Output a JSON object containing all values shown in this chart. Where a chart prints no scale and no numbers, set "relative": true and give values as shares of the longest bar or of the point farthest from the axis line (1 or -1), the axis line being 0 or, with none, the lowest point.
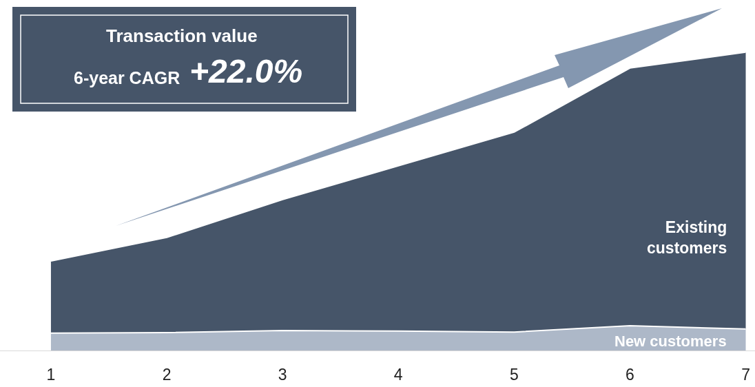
{
  "chart_data": {
    "type": "area",
    "stacked": true,
    "relative": true,
    "title": "Transaction value",
    "annotations": [
      "6-year CAGR",
      "+22.0%"
    ],
    "categories": [
      "1",
      "2",
      "3",
      "4",
      "5",
      "6",
      "7"
    ],
    "series": [
      {
        "name": "New customers",
        "color": "#adb8c8",
        "values": [
          0.058,
          0.06,
          0.067,
          0.065,
          0.062,
          0.083,
          0.072
        ]
      },
      {
        "name": "Existing customers",
        "color": "#465569",
        "values": [
          0.242,
          0.319,
          0.439,
          0.554,
          0.67,
          0.864,
          0.928
        ]
      }
    ]
  }
}
